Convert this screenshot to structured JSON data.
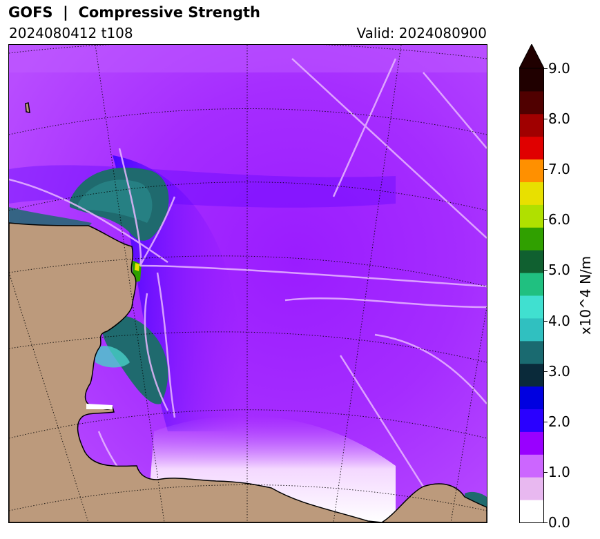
{
  "title": "GOFS  |  Compressive Strength",
  "subtitle_left": "2024080412 t108",
  "subtitle_right": "Valid: 2024080900",
  "colorbar": {
    "label": "x10^4 N/m",
    "ticks": [
      "0.0",
      "1.0",
      "2.0",
      "3.0",
      "4.0",
      "5.0",
      "6.0",
      "7.0",
      "8.0",
      "9.0"
    ],
    "range": [
      0,
      9
    ],
    "extend": "max",
    "colors": [
      "#ffffff",
      "#e8b8f0",
      "#cc66ff",
      "#9900ff",
      "#2a00ff",
      "#0000e0",
      "#0a2a3a",
      "#1a6a70",
      "#30c0c0",
      "#40e0d0",
      "#20c080",
      "#106030",
      "#30a000",
      "#b0e000",
      "#e8e000",
      "#ff9000",
      "#e00000",
      "#a00000",
      "#500000",
      "#200000"
    ]
  },
  "colors": {
    "land": "#bc9a7c",
    "ice_base": "#a82cff",
    "coastline": "#000000",
    "grid": "#000000"
  }
}
